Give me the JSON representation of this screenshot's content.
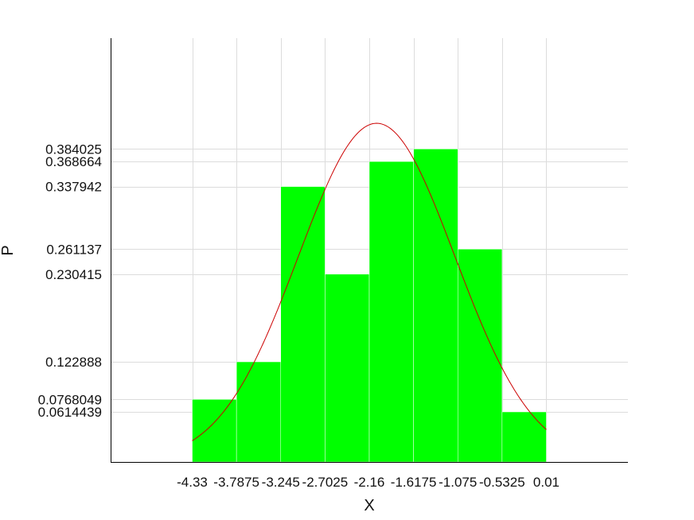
{
  "chart_data": {
    "type": "bar",
    "xlabel": "X",
    "ylabel": "P",
    "x_ticks": [
      -4.33,
      -3.7875,
      -3.245,
      -2.7025,
      -2.16,
      -1.6175,
      -1.075,
      -0.5325,
      0.01
    ],
    "x_tick_labels": [
      "-4.33",
      "-3.7875",
      "-3.245",
      "-2.7025",
      "-2.16",
      "-1.6175",
      "-1.075",
      "-0.5325",
      "0.01"
    ],
    "y_ticks": [
      0.0614439,
      0.0768049,
      0.122888,
      0.230415,
      0.261137,
      0.337942,
      0.368664,
      0.384025
    ],
    "y_tick_labels": [
      "0.0614439",
      "0.0768049",
      "0.122888",
      "0.230415",
      "0.261137",
      "0.337942",
      "0.368664",
      "0.384025"
    ],
    "xlim": [
      -5.33,
      1.01
    ],
    "ylim": [
      0,
      0.52
    ],
    "grid": true,
    "bin_edges": [
      -4.33,
      -3.7875,
      -3.245,
      -2.7025,
      -2.16,
      -1.6175,
      -1.075,
      -0.5325,
      0.01
    ],
    "values": [
      0.0768049,
      0.122888,
      0.337942,
      0.230415,
      0.368664,
      0.384025,
      0.261137,
      0.0614439
    ],
    "bar_color": "#00ff00",
    "curve": {
      "type": "normal-pdf",
      "mean": -2.07,
      "std": 0.96,
      "x_range": [
        -4.33,
        0.01
      ],
      "color": "#cc0000"
    }
  }
}
